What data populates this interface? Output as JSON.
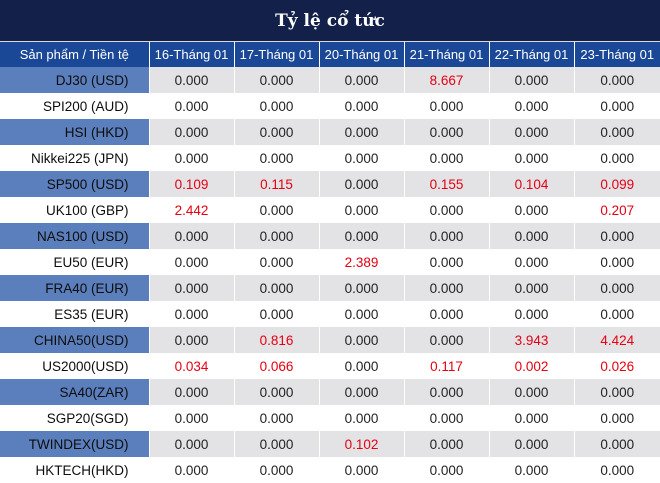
{
  "title": "Tỷ lệ cổ tức",
  "header": {
    "product": "Sản phẩm / Tiền tệ",
    "dates": [
      "16-Tháng 01",
      "17-Tháng 01",
      "20-Tháng 01",
      "21-Tháng 01",
      "22-Tháng 01",
      "23-Tháng 01"
    ]
  },
  "rows": [
    {
      "product": "DJ30 (USD)",
      "values": [
        "0.000",
        "0.000",
        "0.000",
        "8.667",
        "0.000",
        "0.000"
      ]
    },
    {
      "product": "SPI200 (AUD)",
      "values": [
        "0.000",
        "0.000",
        "0.000",
        "0.000",
        "0.000",
        "0.000"
      ]
    },
    {
      "product": "HSI (HKD)",
      "values": [
        "0.000",
        "0.000",
        "0.000",
        "0.000",
        "0.000",
        "0.000"
      ]
    },
    {
      "product": "Nikkei225 (JPN)",
      "values": [
        "0.000",
        "0.000",
        "0.000",
        "0.000",
        "0.000",
        "0.000"
      ]
    },
    {
      "product": "SP500 (USD)",
      "values": [
        "0.109",
        "0.115",
        "0.000",
        "0.155",
        "0.104",
        "0.099"
      ]
    },
    {
      "product": "UK100 (GBP)",
      "values": [
        "2.442",
        "0.000",
        "0.000",
        "0.000",
        "0.000",
        "0.207"
      ]
    },
    {
      "product": "NAS100 (USD)",
      "values": [
        "0.000",
        "0.000",
        "0.000",
        "0.000",
        "0.000",
        "0.000"
      ]
    },
    {
      "product": "EU50 (EUR)",
      "values": [
        "0.000",
        "0.000",
        "2.389",
        "0.000",
        "0.000",
        "0.000"
      ]
    },
    {
      "product": "FRA40 (EUR)",
      "values": [
        "0.000",
        "0.000",
        "0.000",
        "0.000",
        "0.000",
        "0.000"
      ]
    },
    {
      "product": "ES35 (EUR)",
      "values": [
        "0.000",
        "0.000",
        "0.000",
        "0.000",
        "0.000",
        "0.000"
      ]
    },
    {
      "product": "CHINA50(USD)",
      "values": [
        "0.000",
        "0.816",
        "0.000",
        "0.000",
        "3.943",
        "4.424"
      ]
    },
    {
      "product": "US2000(USD)",
      "values": [
        "0.034",
        "0.066",
        "0.000",
        "0.117",
        "0.002",
        "0.026"
      ]
    },
    {
      "product": "SA40(ZAR)",
      "values": [
        "0.000",
        "0.000",
        "0.000",
        "0.000",
        "0.000",
        "0.000"
      ]
    },
    {
      "product": "SGP20(SGD)",
      "values": [
        "0.000",
        "0.000",
        "0.000",
        "0.000",
        "0.000",
        "0.000"
      ]
    },
    {
      "product": "TWINDEX(USD)",
      "values": [
        "0.000",
        "0.000",
        "0.102",
        "0.000",
        "0.000",
        "0.000"
      ]
    },
    {
      "product": "HKTECH(HKD)",
      "values": [
        "0.000",
        "0.000",
        "0.000",
        "0.000",
        "0.000",
        "0.000"
      ]
    }
  ],
  "colors": {
    "title_bg": "#13204a",
    "header_bg": "#1b4797",
    "nonzero_value": "#e60012",
    "zero_value": "#222222"
  }
}
